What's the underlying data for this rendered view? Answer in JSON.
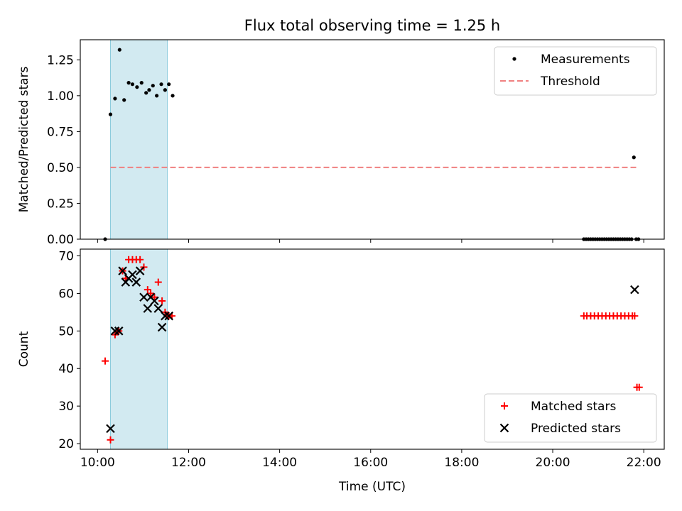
{
  "figure": {
    "title": "Flux total observing time = 1.25 h",
    "xlabel": "Time (UTC)"
  },
  "chart_data": [
    {
      "type": "scatter",
      "panel": "top",
      "ylabel": "Matched/Predicted stars",
      "ylim": [
        0,
        1.39
      ],
      "yticks": [
        "0.00",
        "0.25",
        "0.50",
        "0.75",
        "1.00",
        "1.25"
      ],
      "ytick_values": [
        0,
        0.25,
        0.5,
        0.75,
        1.0,
        1.25
      ],
      "xlim_hours": [
        9.62,
        22.45
      ],
      "xticks": [
        "10:00",
        "12:00",
        "14:00",
        "16:00",
        "18:00",
        "20:00",
        "22:00"
      ],
      "shaded_span": {
        "start": "10:17",
        "end": "11:32",
        "color": "#add8e6"
      },
      "legend_placement": "top-right",
      "series": [
        {
          "name": "Measurements",
          "marker": "dot",
          "color": "#000000",
          "x": [
            "10:10",
            "10:17",
            "10:23",
            "10:29",
            "10:35",
            "10:41",
            "10:46",
            "10:52",
            "10:58",
            "11:04",
            "11:08",
            "11:13",
            "11:18",
            "11:24",
            "11:29",
            "11:34",
            "11:39",
            "20:41",
            "20:44",
            "20:47",
            "20:50",
            "20:53",
            "20:56",
            "20:59",
            "21:02",
            "21:05",
            "21:08",
            "21:11",
            "21:14",
            "21:17",
            "21:20",
            "21:23",
            "21:26",
            "21:29",
            "21:32",
            "21:35",
            "21:38",
            "21:41",
            "21:44",
            "21:47",
            "21:50",
            "21:53"
          ],
          "y": [
            0.0,
            0.87,
            0.98,
            1.32,
            0.97,
            1.09,
            1.08,
            1.06,
            1.09,
            1.02,
            1.04,
            1.07,
            1.0,
            1.08,
            1.04,
            1.08,
            1.0,
            0.0,
            0.0,
            0.0,
            0.0,
            0.0,
            0.0,
            0.0,
            0.0,
            0.0,
            0.0,
            0.0,
            0.0,
            0.0,
            0.0,
            0.0,
            0.0,
            0.0,
            0.0,
            0.0,
            0.0,
            0.0,
            0.0,
            0.57,
            0.0,
            0.0
          ]
        },
        {
          "name": "Threshold",
          "marker": "dashed-line",
          "color": "#f08080",
          "x": [
            "10:17",
            "21:53"
          ],
          "y": [
            0.5,
            0.5
          ]
        }
      ]
    },
    {
      "type": "scatter",
      "panel": "bottom",
      "ylabel": "Count",
      "ylim": [
        18.5,
        71.8
      ],
      "yticks": [
        "20",
        "30",
        "40",
        "50",
        "60",
        "70"
      ],
      "ytick_values": [
        20,
        30,
        40,
        50,
        60,
        70
      ],
      "xlim_hours": [
        9.62,
        22.45
      ],
      "xticks": [
        "10:00",
        "12:00",
        "14:00",
        "16:00",
        "18:00",
        "20:00",
        "22:00"
      ],
      "shaded_span": {
        "start": "10:17",
        "end": "11:32",
        "color": "#add8e6"
      },
      "legend_placement": "lower-right",
      "series": [
        {
          "name": "Matched stars",
          "marker": "plus",
          "color": "#ff0000",
          "x": [
            "10:10",
            "10:17",
            "10:23",
            "10:28",
            "10:33",
            "10:37",
            "10:41",
            "10:46",
            "10:51",
            "10:56",
            "11:01",
            "11:06",
            "11:10",
            "11:15",
            "11:20",
            "11:25",
            "11:29",
            "11:34",
            "11:38",
            "20:41",
            "20:45",
            "20:50",
            "20:55",
            "21:00",
            "21:05",
            "21:10",
            "21:15",
            "21:20",
            "21:25",
            "21:30",
            "21:35",
            "21:40",
            "21:45",
            "21:48",
            "21:51",
            "21:54"
          ],
          "y": [
            42,
            21,
            49,
            50,
            66,
            64,
            69,
            69,
            69,
            69,
            67,
            61,
            60,
            59,
            63,
            58,
            55,
            54,
            54,
            54,
            54,
            54,
            54,
            54,
            54,
            54,
            54,
            54,
            54,
            54,
            54,
            54,
            54,
            54,
            35,
            35
          ]
        },
        {
          "name": "Predicted stars",
          "marker": "x",
          "color": "#000000",
          "x": [
            "10:17",
            "10:23",
            "10:28",
            "10:33",
            "10:37",
            "10:41",
            "10:46",
            "10:51",
            "10:56",
            "11:01",
            "11:06",
            "11:10",
            "11:15",
            "11:20",
            "11:25",
            "11:29",
            "11:34",
            "21:48"
          ],
          "y": [
            24,
            50,
            50,
            66,
            63,
            64,
            65,
            63,
            66,
            59,
            56,
            59,
            58,
            56,
            51,
            54,
            54,
            61
          ]
        }
      ]
    }
  ]
}
